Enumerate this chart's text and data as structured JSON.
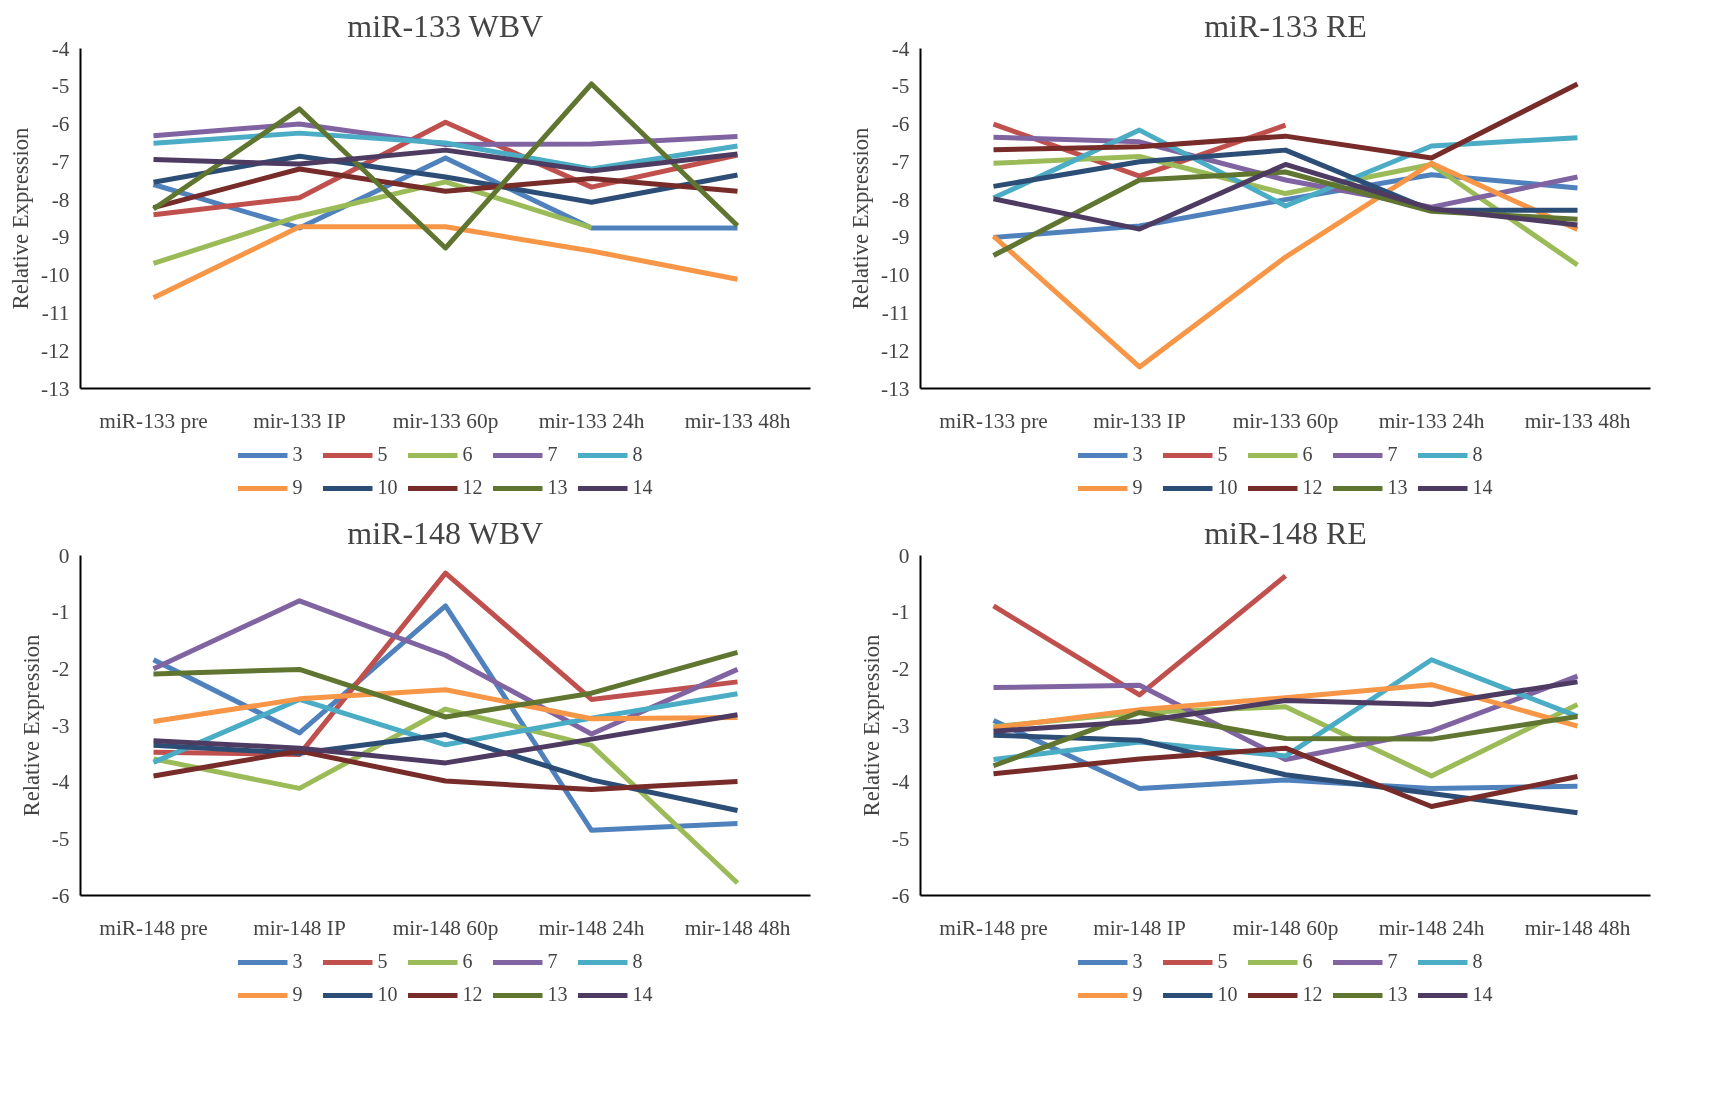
{
  "chart_data": [
    {
      "type": "line",
      "title": "miR-133 WBV",
      "ylabel": "Relative Expression",
      "categories": [
        "miR-133 pre",
        "mir-133 IP",
        "mir-133 60p",
        "mir-133 24h",
        "mir-133 48h"
      ],
      "ylim": [
        -13,
        -4
      ],
      "yticks": [
        -13,
        -12,
        -11,
        -10,
        -9,
        -8,
        -7,
        -6,
        -5,
        -4
      ],
      "grid": false,
      "legend": "bottom",
      "series": [
        {
          "name": "3",
          "color": "#4f81bd",
          "values": [
            -7.6,
            -8.75,
            -6.9,
            -8.75,
            -8.75
          ]
        },
        {
          "name": "5",
          "color": "#c0504d",
          "values": [
            -8.4,
            -7.95,
            -5.95,
            -7.67,
            -6.82
          ]
        },
        {
          "name": "6",
          "color": "#9bbb59",
          "values": [
            -9.69,
            -8.44,
            -7.53,
            -8.74,
            null
          ]
        },
        {
          "name": "7",
          "color": "#8064a2",
          "values": [
            -6.31,
            -6.0,
            -6.54,
            -6.53,
            -6.33
          ]
        },
        {
          "name": "8",
          "color": "#4bacc6",
          "values": [
            -6.51,
            -6.24,
            -6.5,
            -7.19,
            -6.58
          ]
        },
        {
          "name": "9",
          "color": "#f79646",
          "values": [
            -10.6,
            -8.72,
            -8.72,
            -9.36,
            -10.11
          ]
        },
        {
          "name": "10",
          "color": "#2c4d75",
          "values": [
            -7.54,
            -6.85,
            -7.4,
            -8.07,
            -7.35
          ]
        },
        {
          "name": "12",
          "color": "#772c2a",
          "values": [
            -8.21,
            -7.19,
            -7.78,
            -7.44,
            -7.78
          ]
        },
        {
          "name": "13",
          "color": "#5f7530",
          "values": [
            -8.25,
            -5.6,
            -9.28,
            -4.94,
            -8.69
          ]
        },
        {
          "name": "14",
          "color": "#4d3b62",
          "values": [
            -6.94,
            -7.06,
            -6.69,
            -7.24,
            -6.79
          ]
        }
      ]
    },
    {
      "type": "line",
      "title": "miR-133 RE",
      "ylabel": "Relative Expression",
      "categories": [
        "miR-133 pre",
        "mir-133 IP",
        "mir-133 60p",
        "mir-133 24h",
        "mir-133 48h"
      ],
      "ylim": [
        -13,
        -4
      ],
      "yticks": [
        -13,
        -12,
        -11,
        -10,
        -9,
        -8,
        -7,
        -6,
        -5,
        -4
      ],
      "grid": false,
      "legend": "bottom",
      "series": [
        {
          "name": "3",
          "color": "#4f81bd",
          "values": [
            -9.0,
            -8.7,
            -8.0,
            -7.34,
            -7.69
          ]
        },
        {
          "name": "5",
          "color": "#c0504d",
          "values": [
            -6.0,
            -7.38,
            -6.03,
            null,
            null
          ]
        },
        {
          "name": "6",
          "color": "#9bbb59",
          "values": [
            -7.04,
            -6.86,
            -7.84,
            -7.07,
            -9.73
          ]
        },
        {
          "name": "7",
          "color": "#8064a2",
          "values": [
            -6.35,
            -6.47,
            -7.48,
            -8.2,
            -7.4
          ]
        },
        {
          "name": "8",
          "color": "#4bacc6",
          "values": [
            -7.96,
            -6.16,
            -8.17,
            -6.58,
            -6.36
          ]
        },
        {
          "name": "9",
          "color": "#f79646",
          "values": [
            -8.97,
            -12.43,
            -9.52,
            -7.04,
            -8.79
          ]
        },
        {
          "name": "10",
          "color": "#2c4d75",
          "values": [
            -7.65,
            -7.0,
            -6.69,
            -8.28,
            -8.28
          ]
        },
        {
          "name": "12",
          "color": "#772c2a",
          "values": [
            -6.68,
            -6.6,
            -6.32,
            -6.9,
            -4.94
          ]
        },
        {
          "name": "13",
          "color": "#5f7530",
          "values": [
            -9.48,
            -7.48,
            -7.27,
            -8.31,
            -8.52
          ]
        },
        {
          "name": "14",
          "color": "#4d3b62",
          "values": [
            -7.98,
            -8.78,
            -7.07,
            -8.24,
            -8.67
          ]
        }
      ]
    },
    {
      "type": "line",
      "title": "miR-148 WBV",
      "ylabel": "Relative Expression",
      "categories": [
        "miR-148 pre",
        "mir-148 IP",
        "mir-148 60p",
        "mir-148 24h",
        "mir-148 48h"
      ],
      "ylim": [
        -6,
        0
      ],
      "yticks": [
        -6,
        -5,
        -4,
        -3,
        -2,
        -1,
        0
      ],
      "grid": false,
      "legend": "bottom",
      "series": [
        {
          "name": "3",
          "color": "#4f81bd",
          "values": [
            -1.84,
            -3.13,
            -0.89,
            -4.85,
            -4.73
          ]
        },
        {
          "name": "5",
          "color": "#c0504d",
          "values": [
            -3.47,
            -3.51,
            -0.31,
            -2.54,
            -2.23
          ]
        },
        {
          "name": "6",
          "color": "#9bbb59",
          "values": [
            -3.59,
            -4.11,
            -2.71,
            -3.35,
            -5.78
          ]
        },
        {
          "name": "7",
          "color": "#8064a2",
          "values": [
            -2.0,
            -0.8,
            -1.76,
            -3.15,
            -2.01
          ]
        },
        {
          "name": "8",
          "color": "#4bacc6",
          "values": [
            -3.65,
            -2.54,
            -3.34,
            -2.87,
            -2.44
          ]
        },
        {
          "name": "9",
          "color": "#f79646",
          "values": [
            -2.93,
            -2.53,
            -2.37,
            -2.88,
            -2.86
          ]
        },
        {
          "name": "10",
          "color": "#2c4d75",
          "values": [
            -3.35,
            -3.49,
            -3.16,
            -3.96,
            -4.5
          ]
        },
        {
          "name": "12",
          "color": "#772c2a",
          "values": [
            -3.89,
            -3.45,
            -3.98,
            -4.13,
            -3.99
          ]
        },
        {
          "name": "13",
          "color": "#5f7530",
          "values": [
            -2.09,
            -2.01,
            -2.85,
            -2.43,
            -1.71
          ]
        },
        {
          "name": "14",
          "color": "#4d3b62",
          "values": [
            -3.27,
            -3.4,
            -3.66,
            -3.24,
            -2.81
          ]
        }
      ]
    },
    {
      "type": "line",
      "title": "miR-148 RE",
      "ylabel": "Relative Expression",
      "categories": [
        "miR-148 pre",
        "mir-148 IP",
        "mir-148 60p",
        "mir-148 24h",
        "mir-148 48h"
      ],
      "ylim": [
        -6,
        0
      ],
      "yticks": [
        -6,
        -5,
        -4,
        -3,
        -2,
        -1,
        0
      ],
      "grid": false,
      "legend": "bottom",
      "series": [
        {
          "name": "3",
          "color": "#4f81bd",
          "values": [
            -2.91,
            -4.11,
            -3.96,
            -4.11,
            -4.07
          ]
        },
        {
          "name": "5",
          "color": "#c0504d",
          "values": [
            -0.89,
            -2.46,
            -0.36,
            null,
            null
          ]
        },
        {
          "name": "6",
          "color": "#9bbb59",
          "values": [
            -3.02,
            -2.77,
            -2.67,
            -3.89,
            -2.63
          ]
        },
        {
          "name": "7",
          "color": "#8064a2",
          "values": [
            -2.33,
            -2.29,
            -3.6,
            -3.1,
            -2.13
          ]
        },
        {
          "name": "8",
          "color": "#4bacc6",
          "values": [
            -3.6,
            -3.29,
            -3.54,
            -1.84,
            -2.84
          ]
        },
        {
          "name": "9",
          "color": "#f79646",
          "values": [
            -3.04,
            -2.72,
            -2.51,
            -2.28,
            -3.01
          ]
        },
        {
          "name": "10",
          "color": "#2c4d75",
          "values": [
            -3.17,
            -3.26,
            -3.87,
            -4.2,
            -4.54
          ]
        },
        {
          "name": "12",
          "color": "#772c2a",
          "values": [
            -3.85,
            -3.59,
            -3.4,
            -4.43,
            -3.9
          ]
        },
        {
          "name": "13",
          "color": "#5f7530",
          "values": [
            -3.71,
            -2.77,
            -3.23,
            -3.24,
            -2.84
          ]
        },
        {
          "name": "14",
          "color": "#4d3b62",
          "values": [
            -3.1,
            -2.93,
            -2.56,
            -2.63,
            -2.23
          ]
        }
      ]
    }
  ]
}
